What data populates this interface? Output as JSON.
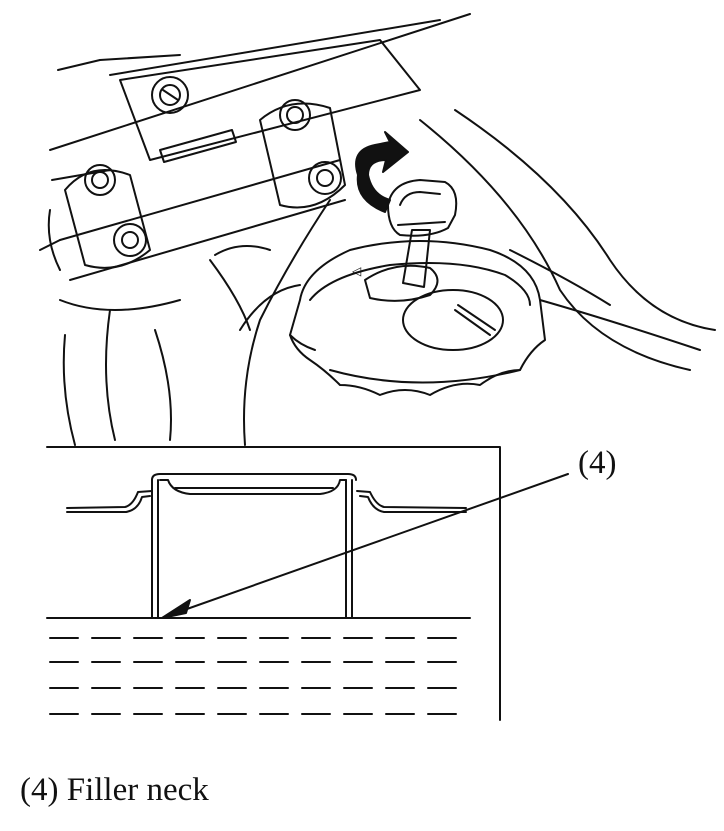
{
  "figure": {
    "callout": "(4)",
    "caption": "(4) Filler neck"
  },
  "colors": {
    "ink": "#111111",
    "background": "#ffffff"
  },
  "icons": [
    "rotation-arrow-icon",
    "key-icon"
  ]
}
